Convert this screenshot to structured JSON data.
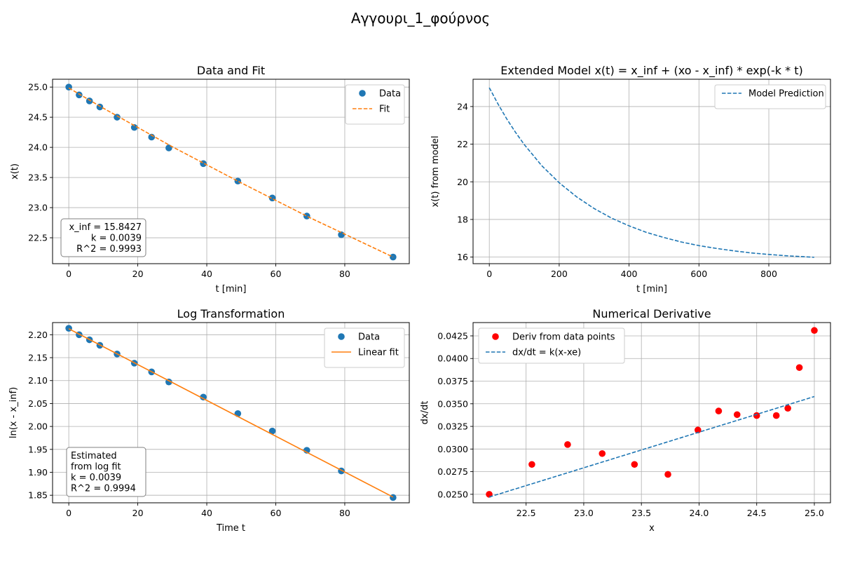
{
  "figure_title": "Αγγουρι_1_φούρνος",
  "colors": {
    "blue": "#1f77b4",
    "orange": "#ff7f0e",
    "red": "#ff0000",
    "grid": "#b0b0b0"
  },
  "chart_data": [
    {
      "id": "p1",
      "type": "scatter",
      "title": "Data and Fit",
      "xlabel": "t [min]",
      "ylabel": "x(t)",
      "xlim": [
        -4.7,
        98.7
      ],
      "ylim": [
        22.07,
        25.13
      ],
      "xticks": [
        0,
        20,
        40,
        60,
        80
      ],
      "yticks": [
        22.5,
        23.0,
        23.5,
        24.0,
        24.5,
        25.0
      ],
      "ytick_format": 1,
      "grid": true,
      "legend": "top-right",
      "series": [
        {
          "name": "Data",
          "kind": "points",
          "color": "#1f77b4",
          "x": [
            0,
            3,
            6,
            9,
            14,
            19,
            24,
            29,
            39,
            49,
            59,
            69,
            79,
            94
          ],
          "y": [
            25.0,
            24.87,
            24.77,
            24.67,
            24.5,
            24.33,
            24.17,
            23.99,
            23.73,
            23.44,
            23.16,
            22.86,
            22.55,
            22.18
          ]
        },
        {
          "name": "Fit",
          "kind": "dashed",
          "color": "#ff7f0e",
          "x": [
            0,
            10,
            20,
            30,
            40,
            50,
            60,
            70,
            80,
            94
          ],
          "y": [
            24.985,
            24.65,
            24.33,
            24.01,
            23.71,
            23.41,
            23.12,
            22.83,
            22.56,
            22.18
          ]
        }
      ],
      "annotation": [
        "x_inf = 15.8427",
        "k = 0.0039",
        "R^2 = 0.9993"
      ],
      "annotation_position": "bottom-left"
    },
    {
      "id": "p2",
      "type": "line",
      "title": "Extended Model x(t) = x_inf + (xo - x_inf) * exp(-k * t)",
      "xlabel": "t [min]",
      "ylabel": "x(t) from model",
      "xlim": [
        -46.5,
        976.5
      ],
      "ylim": [
        15.65,
        25.45
      ],
      "xticks": [
        0,
        200,
        400,
        600,
        800
      ],
      "yticks": [
        16,
        18,
        20,
        22,
        24
      ],
      "ytick_format": 0,
      "grid": true,
      "legend": "top-right",
      "series": [
        {
          "name": "Model Prediction",
          "kind": "dashed",
          "color": "#1f77b4",
          "x": [
            0,
            25,
            50,
            75,
            100,
            150,
            200,
            250,
            300,
            350,
            400,
            450,
            500,
            550,
            600,
            650,
            700,
            750,
            800,
            850,
            900,
            930
          ],
          "y": [
            25.0,
            24.13,
            23.34,
            22.63,
            21.98,
            20.86,
            19.95,
            19.2,
            18.58,
            18.07,
            17.66,
            17.31,
            17.04,
            16.8,
            16.61,
            16.46,
            16.33,
            16.22,
            16.14,
            16.07,
            16.02,
            15.99
          ]
        }
      ]
    },
    {
      "id": "p3",
      "type": "scatter",
      "title": "Log Transformation",
      "xlabel": "Time t",
      "ylabel": "ln(x - x_inf)",
      "xlim": [
        -4.7,
        98.7
      ],
      "ylim": [
        1.8335,
        2.2265
      ],
      "xticks": [
        0,
        20,
        40,
        60,
        80
      ],
      "yticks": [
        1.85,
        1.9,
        1.95,
        2.0,
        2.05,
        2.1,
        2.15,
        2.2
      ],
      "ytick_format": 2,
      "grid": true,
      "legend": "top-right",
      "series": [
        {
          "name": "Data",
          "kind": "points",
          "color": "#1f77b4",
          "x": [
            0,
            3,
            6,
            9,
            14,
            19,
            24,
            29,
            39,
            49,
            59,
            69,
            79,
            94
          ],
          "y": [
            2.214,
            2.2,
            2.189,
            2.177,
            2.158,
            2.138,
            2.119,
            2.097,
            2.064,
            2.028,
            1.99,
            1.948,
            1.903,
            1.845
          ]
        },
        {
          "name": "Linear fit",
          "kind": "solid",
          "color": "#ff7f0e",
          "x": [
            0,
            94
          ],
          "y": [
            2.213,
            1.846
          ]
        }
      ],
      "annotation": [
        "Estimated",
        "from log fit",
        "k = 0.0039",
        " R^2 = 0.9994"
      ],
      "annotation_position": "bottom-left"
    },
    {
      "id": "p4",
      "type": "scatter",
      "title": "Numerical Derivative",
      "xlabel": "x",
      "ylabel": "dx/dt",
      "xlim": [
        22.04,
        25.14
      ],
      "ylim": [
        0.02406,
        0.04397
      ],
      "xticks": [
        22.5,
        23.0,
        23.5,
        24.0,
        24.5,
        25.0
      ],
      "yticks": [
        0.025,
        0.0275,
        0.03,
        0.0325,
        0.035,
        0.0375,
        0.04,
        0.0425
      ],
      "ytick_format": 4,
      "xtick_format": 1,
      "grid": true,
      "legend": "top-left",
      "series": [
        {
          "name": "Deriv from data points",
          "kind": "points",
          "color": "#ff0000",
          "x": [
            22.18,
            22.55,
            22.86,
            23.16,
            23.44,
            23.73,
            23.99,
            24.17,
            24.33,
            24.5,
            24.67,
            24.77,
            24.87,
            25.0
          ],
          "y": [
            0.025,
            0.0283,
            0.0305,
            0.0295,
            0.0283,
            0.0272,
            0.0321,
            0.0342,
            0.0338,
            0.0337,
            0.0337,
            0.0345,
            0.039,
            0.0431
          ]
        },
        {
          "name": "dx/dt = k(x-xe)",
          "kind": "dashed",
          "color": "#1f77b4",
          "x": [
            22.18,
            25.0
          ],
          "y": [
            0.0247,
            0.0358
          ]
        }
      ]
    }
  ]
}
